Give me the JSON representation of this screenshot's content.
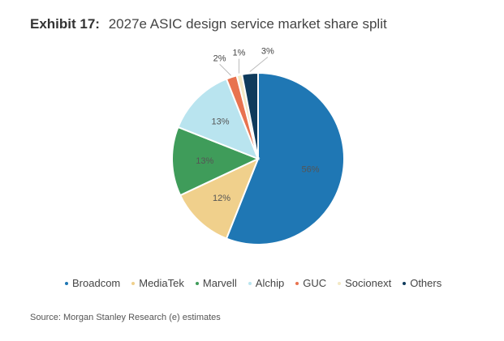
{
  "title": {
    "exhibit": "Exhibit 17:",
    "subtitle": "2027e ASIC design service market share split"
  },
  "source": "Source: Morgan Stanley Research (e) estimates",
  "chart_data": {
    "type": "pie",
    "title": "2027e ASIC design service market share split",
    "legend_position": "bottom",
    "slices": [
      {
        "name": "Broadcom",
        "value": 56,
        "label": "56%",
        "color": "#1f77b4"
      },
      {
        "name": "MediaTek",
        "value": 12,
        "label": "12%",
        "color": "#f0d08c"
      },
      {
        "name": "Marvell",
        "value": 13,
        "label": "13%",
        "color": "#3f9c5a"
      },
      {
        "name": "Alchip",
        "value": 13,
        "label": "13%",
        "color": "#b9e4ef"
      },
      {
        "name": "GUC",
        "value": 2,
        "label": "2%",
        "color": "#e8734f"
      },
      {
        "name": "Socionext",
        "value": 1,
        "label": "1%",
        "color": "#f3e9c5"
      },
      {
        "name": "Others",
        "value": 3,
        "label": "3%",
        "color": "#0f3b5c"
      }
    ]
  }
}
